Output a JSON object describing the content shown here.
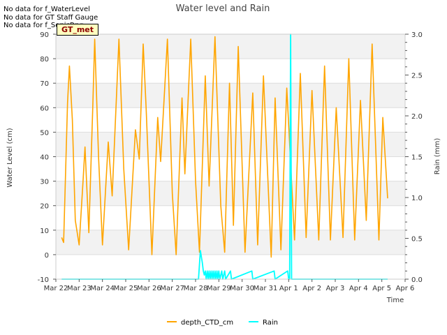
{
  "chart_data": {
    "type": "line",
    "title": "Water level and Rain",
    "xlabel": "Time",
    "ylabel": "Water Level (cm)",
    "y2label": "Rain (mm)",
    "x_ticks": [
      "Mar 22",
      "Mar 23",
      "Mar 24",
      "Mar 25",
      "Mar 26",
      "Mar 27",
      "Mar 28",
      "Mar 29",
      "Mar 30",
      "Mar 31",
      "Apr 1",
      "Apr 2",
      "Apr 3",
      "Apr 4",
      "Apr 5",
      "Apr 6"
    ],
    "xlim": [
      "2024-03-22",
      "2024-04-06"
    ],
    "ylim": [
      -10,
      90
    ],
    "y_ticks": [
      -10,
      0,
      10,
      20,
      30,
      40,
      50,
      60,
      70,
      80,
      90
    ],
    "y2lim": [
      0.0,
      3.0
    ],
    "y2_ticks": [
      "0.0",
      "0.5",
      "1.0",
      "1.5",
      "2.0",
      "2.5",
      "3.0"
    ],
    "grid": true,
    "legend_position": "bottom-center",
    "series": [
      {
        "name": "depth_CTD_cm",
        "color": "#FFA500",
        "axis": "left",
        "points": [
          [
            "2024-03-22 06:00",
            7
          ],
          [
            "2024-03-22 08:00",
            5
          ],
          [
            "2024-03-22 12:00",
            62
          ],
          [
            "2024-03-22 14:00",
            77
          ],
          [
            "2024-03-22 17:00",
            55
          ],
          [
            "2024-03-22 20:00",
            14
          ],
          [
            "2024-03-23 00:00",
            4
          ],
          [
            "2024-03-23 04:00",
            30
          ],
          [
            "2024-03-23 06:00",
            44
          ],
          [
            "2024-03-23 10:00",
            9
          ],
          [
            "2024-03-23 14:00",
            60
          ],
          [
            "2024-03-23 16:00",
            88
          ],
          [
            "2024-03-23 20:00",
            40
          ],
          [
            "2024-03-24 00:00",
            4
          ],
          [
            "2024-03-24 06:00",
            46
          ],
          [
            "2024-03-24 10:00",
            24
          ],
          [
            "2024-03-24 17:00",
            88
          ],
          [
            "2024-03-24 22:00",
            35
          ],
          [
            "2024-03-25 03:00",
            2
          ],
          [
            "2024-03-25 10:00",
            51
          ],
          [
            "2024-03-25 14:00",
            39
          ],
          [
            "2024-03-25 18:00",
            86
          ],
          [
            "2024-03-25 21:00",
            60
          ],
          [
            "2024-03-26 03:00",
            0
          ],
          [
            "2024-03-26 09:00",
            56
          ],
          [
            "2024-03-26 12:00",
            38
          ],
          [
            "2024-03-26 19:00",
            88
          ],
          [
            "2024-03-27 00:00",
            25
          ],
          [
            "2024-03-27 04:00",
            0
          ],
          [
            "2024-03-27 10:00",
            64
          ],
          [
            "2024-03-27 13:00",
            33
          ],
          [
            "2024-03-27 19:00",
            88
          ],
          [
            "2024-03-28 00:00",
            30
          ],
          [
            "2024-03-28 04:00",
            1
          ],
          [
            "2024-03-28 10:00",
            73
          ],
          [
            "2024-03-28 14:00",
            28
          ],
          [
            "2024-03-28 20:00",
            89
          ],
          [
            "2024-03-29 02:00",
            20
          ],
          [
            "2024-03-29 06:00",
            1
          ],
          [
            "2024-03-29 11:00",
            70
          ],
          [
            "2024-03-29 15:00",
            12
          ],
          [
            "2024-03-29 20:00",
            85
          ],
          [
            "2024-03-30 03:00",
            1
          ],
          [
            "2024-03-30 11:00",
            66
          ],
          [
            "2024-03-30 16:00",
            4
          ],
          [
            "2024-03-30 22:00",
            73
          ],
          [
            "2024-03-31 06:00",
            -1
          ],
          [
            "2024-03-31 10:00",
            64
          ],
          [
            "2024-03-31 16:00",
            2
          ],
          [
            "2024-03-31 22:00",
            68
          ],
          [
            "2024-04-01 06:00",
            6
          ],
          [
            "2024-04-01 12:00",
            74
          ],
          [
            "2024-04-01 18:00",
            7
          ],
          [
            "2024-04-02 00:00",
            67
          ],
          [
            "2024-04-02 07:00",
            6
          ],
          [
            "2024-04-02 13:00",
            77
          ],
          [
            "2024-04-02 19:00",
            6
          ],
          [
            "2024-04-03 01:00",
            60
          ],
          [
            "2024-04-03 08:00",
            7
          ],
          [
            "2024-04-03 14:00",
            80
          ],
          [
            "2024-04-03 20:00",
            6
          ],
          [
            "2024-04-04 02:00",
            63
          ],
          [
            "2024-04-04 08:00",
            14
          ],
          [
            "2024-04-04 14:00",
            86
          ],
          [
            "2024-04-04 21:00",
            6
          ],
          [
            "2024-04-05 01:00",
            56
          ],
          [
            "2024-04-05 06:00",
            23
          ]
        ]
      },
      {
        "name": "Rain",
        "color": "#00FFFF",
        "axis": "right",
        "points": [
          [
            "2024-03-22 06:00",
            0.0
          ],
          [
            "2024-03-28 03:00",
            0.0
          ],
          [
            "2024-03-28 05:00",
            0.35
          ],
          [
            "2024-03-28 07:00",
            0.2
          ],
          [
            "2024-03-28 08:00",
            0.1
          ],
          [
            "2024-03-28 09:00",
            0.05
          ],
          [
            "2024-03-28 10:00",
            0.1
          ],
          [
            "2024-03-28 11:00",
            0.0
          ],
          [
            "2024-03-28 12:00",
            0.1
          ],
          [
            "2024-03-28 13:00",
            0.0
          ],
          [
            "2024-03-28 14:00",
            0.1
          ],
          [
            "2024-03-28 15:00",
            0.0
          ],
          [
            "2024-03-28 16:00",
            0.1
          ],
          [
            "2024-03-28 17:00",
            0.0
          ],
          [
            "2024-03-28 18:00",
            0.1
          ],
          [
            "2024-03-28 19:00",
            0.0
          ],
          [
            "2024-03-28 20:00",
            0.1
          ],
          [
            "2024-03-28 21:00",
            0.0
          ],
          [
            "2024-03-28 22:00",
            0.1
          ],
          [
            "2024-03-28 23:00",
            0.0
          ],
          [
            "2024-03-29 00:00",
            0.1
          ],
          [
            "2024-03-29 01:00",
            0.0
          ],
          [
            "2024-03-29 03:00",
            0.1
          ],
          [
            "2024-03-29 04:00",
            0.0
          ],
          [
            "2024-03-29 06:00",
            0.1
          ],
          [
            "2024-03-29 07:00",
            0.0
          ],
          [
            "2024-03-29 12:00",
            0.1
          ],
          [
            "2024-03-29 13:00",
            0.0
          ],
          [
            "2024-03-30 10:00",
            0.1
          ],
          [
            "2024-03-30 11:00",
            0.0
          ],
          [
            "2024-03-31 09:00",
            0.1
          ],
          [
            "2024-03-31 10:00",
            0.0
          ],
          [
            "2024-03-31 23:00",
            0.1
          ],
          [
            "2024-04-01 00:00",
            0.0
          ],
          [
            "2024-04-01 01:00",
            0.0
          ],
          [
            "2024-04-01 02:00",
            3.0
          ],
          [
            "2024-04-01 03:00",
            0.0
          ],
          [
            "2024-04-05 06:00",
            0.0
          ]
        ]
      }
    ],
    "annotations": [
      "No data for f_WaterLevel",
      "No data for GT Staff Gauge",
      "No data for f_SonicRng"
    ],
    "badge": "GT_met"
  }
}
